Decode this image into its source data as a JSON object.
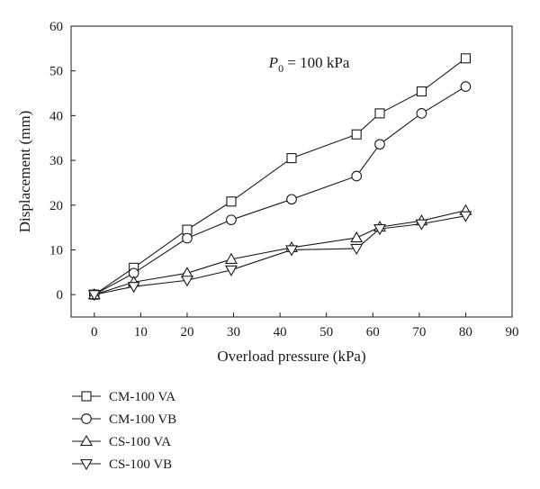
{
  "chart_data": {
    "type": "line",
    "xlabel": "Overload pressure (kPa)",
    "ylabel": "Displacement (mm)",
    "xlim": [
      -5,
      90
    ],
    "ylim": [
      -5,
      60
    ],
    "xticks": [
      0,
      10,
      20,
      30,
      40,
      50,
      60,
      70,
      80,
      90
    ],
    "yticks": [
      0,
      10,
      20,
      30,
      40,
      50,
      60
    ],
    "grid": false,
    "legend_position": "bottom-left",
    "annotation": {
      "symbol": "P",
      "subscript": "0",
      "text": " = 100 kPa",
      "x": 50,
      "y": 52
    },
    "series": [
      {
        "name": "CM-100 VA",
        "marker": "square",
        "x": [
          0,
          8.5,
          20,
          29.5,
          42.5,
          56.5,
          61.5,
          70.5,
          80
        ],
        "y": [
          0,
          6,
          14.5,
          20.8,
          30.5,
          35.8,
          40.5,
          45.4,
          52.8
        ]
      },
      {
        "name": "CM-100 VB",
        "marker": "circle",
        "x": [
          0,
          8.5,
          20,
          29.5,
          42.5,
          56.5,
          61.5,
          70.5,
          80
        ],
        "y": [
          0,
          4.8,
          12.6,
          16.7,
          21.3,
          26.5,
          33.6,
          40.5,
          46.5
        ]
      },
      {
        "name": "CS-100 VA",
        "marker": "triangle-up",
        "x": [
          0,
          8.5,
          20,
          29.5,
          42.5,
          56.5,
          61.5,
          70.5,
          80
        ],
        "y": [
          0,
          2.8,
          4.8,
          7.9,
          10.5,
          12.7,
          15.1,
          16.5,
          18.8
        ]
      },
      {
        "name": "CS-100 VB",
        "marker": "triangle-down",
        "x": [
          0,
          8.5,
          20,
          29.5,
          42.5,
          56.5,
          61.5,
          70.5,
          80
        ],
        "y": [
          0,
          1.8,
          3.2,
          5.5,
          10,
          10.3,
          14.7,
          15.8,
          17.6
        ]
      }
    ]
  }
}
